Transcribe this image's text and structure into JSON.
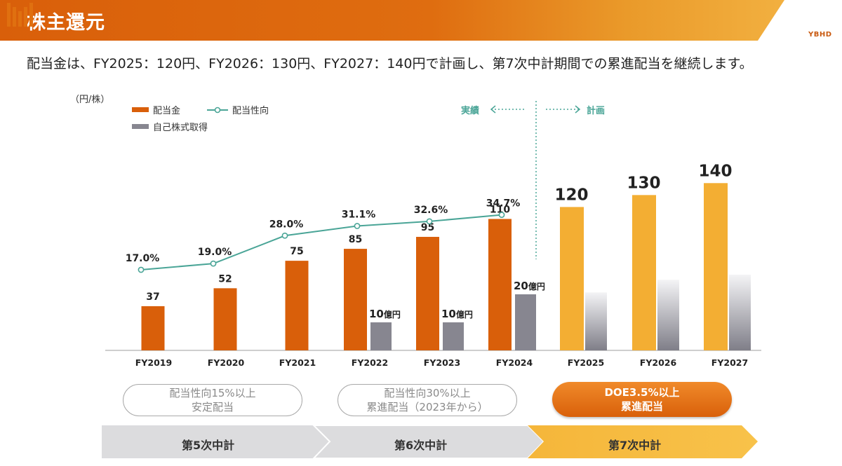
{
  "header": {
    "title": "株主還元",
    "logo_text": "YBHD"
  },
  "subtitle": "配当金は、FY2025：120円、FY2026：130円、FY2027：140円で計画し、第7次中計期間での累進配当を継続します。",
  "colors": {
    "orange": "#d95f0a",
    "gold": "#f3ae33",
    "gray": "#878690",
    "teal": "#4aa597",
    "header": "#d95f0a"
  },
  "chart_data": {
    "type": "bar",
    "unit_label": "（円/株）",
    "legend": {
      "dividend": "配当金",
      "payout": "配当性向",
      "buyback": "自己株式取得"
    },
    "annotation_actual": "実績",
    "annotation_plan": "計画",
    "categories": [
      "FY2019",
      "FY2020",
      "FY2021",
      "FY2022",
      "FY2023",
      "FY2024",
      "FY2025",
      "FY2026",
      "FY2027"
    ],
    "dividends": [
      37,
      52,
      75,
      85,
      95,
      110,
      120,
      130,
      140
    ],
    "dividend_labels": [
      "37",
      "52",
      "75",
      "85",
      "95",
      "110",
      "120",
      "130",
      "140"
    ],
    "planned_from_index": 6,
    "payout_ratio": [
      17.0,
      19.0,
      28.0,
      31.1,
      32.6,
      34.7
    ],
    "payout_labels": [
      "17.0%",
      "19.0%",
      "28.0%",
      "31.1%",
      "32.6%",
      "34.7%"
    ],
    "buyback_value": [
      10,
      10,
      20
    ],
    "buyback_num": [
      "10",
      "10",
      "20"
    ],
    "buyback_unit": "億円",
    "buyback_categories": [
      "FY2022",
      "FY2023",
      "FY2024"
    ],
    "planned_buyback_indicative": [
      23,
      28,
      30
    ]
  },
  "policies": {
    "p5_line1": "配当性向15%以上",
    "p5_line2": "安定配当",
    "p6_line1": "配当性向30%以上",
    "p6_line2": "累進配当（2023年から）",
    "p7_line1": "DOE3.5%以上",
    "p7_line2": "累進配当"
  },
  "phases": {
    "p5": "第5次中計",
    "p6": "第6次中計",
    "p7": "第7次中計"
  }
}
